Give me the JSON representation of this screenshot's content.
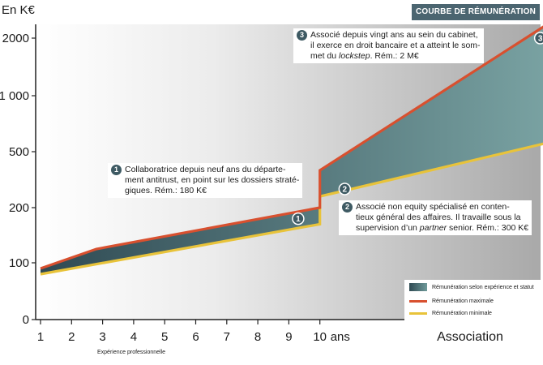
{
  "badge": "COURBE DE RÉMUNÉRATION",
  "unit_label": "En K€",
  "annotations": [
    {
      "number": "1",
      "lines": [
        "Collaboratrice depuis neuf ans du départe-",
        "ment antitrust, en point sur les dossiers straté-",
        "giques. Rém.: 180 K€"
      ]
    },
    {
      "number": "2",
      "lines": [
        "Associé non equity spécialisé en conten-",
        "tieux général des affaires. Il travaille sous la"
      ],
      "last_pre": "supervision d’un ",
      "last_em": "partner",
      "last_post": " senior. Rém.: 300 K€"
    },
    {
      "number": "3",
      "lines": [
        "Associé depuis vingt ans au sein du cabinet,",
        "il exerce en droit bancaire et a atteint le som-"
      ],
      "last_pre": "met du ",
      "last_em": "lockstep",
      "last_post": ". Rém.: 2 M€"
    }
  ],
  "legend": {
    "band": "Rémunération selon expérience et statut",
    "max": "Rémunération maximale",
    "min": "Rémunération minimale"
  },
  "colors": {
    "max_line": "#d8502f",
    "min_line": "#e8c33a",
    "band_dark": "#2f4a53",
    "band_light": "#7aa3a3",
    "badge_bg": "#4b6570",
    "marker": "#3e5a63"
  },
  "chart_data": {
    "type": "area",
    "title": "COURBE DE RÉMUNÉRATION",
    "ylabel": "En K€",
    "xlabel": "Expérience professionnelle",
    "y_scale": "nonlinear (categorical ticks)",
    "yticks": [
      0,
      100,
      200,
      500,
      1000,
      2000
    ],
    "ytick_labels": [
      "0",
      "100",
      "200",
      "500",
      "1 000",
      "2000"
    ],
    "xticks": [
      "1",
      "2",
      "3",
      "4",
      "5",
      "6",
      "7",
      "8",
      "9",
      "10"
    ],
    "x_suffix": "ans",
    "x_extra_label": "Association",
    "series": [
      {
        "name": "Rémunération maximale",
        "points": [
          [
            1,
            90
          ],
          [
            2.8,
            125
          ],
          [
            10,
            200
          ],
          [
            10,
            400
          ],
          [
            17.5,
            2300
          ]
        ]
      },
      {
        "name": "Rémunération minimale",
        "points": [
          [
            1,
            80
          ],
          [
            10,
            170
          ],
          [
            10,
            260
          ],
          [
            17.5,
            590
          ]
        ]
      }
    ],
    "markers": [
      {
        "label": "1",
        "x": 9.3,
        "y": 180
      },
      {
        "label": "2",
        "x": 10.8,
        "y": 300
      },
      {
        "label": "3",
        "x": 17.1,
        "y": 2000
      }
    ],
    "grid": false,
    "legend_position": "bottom-right"
  }
}
